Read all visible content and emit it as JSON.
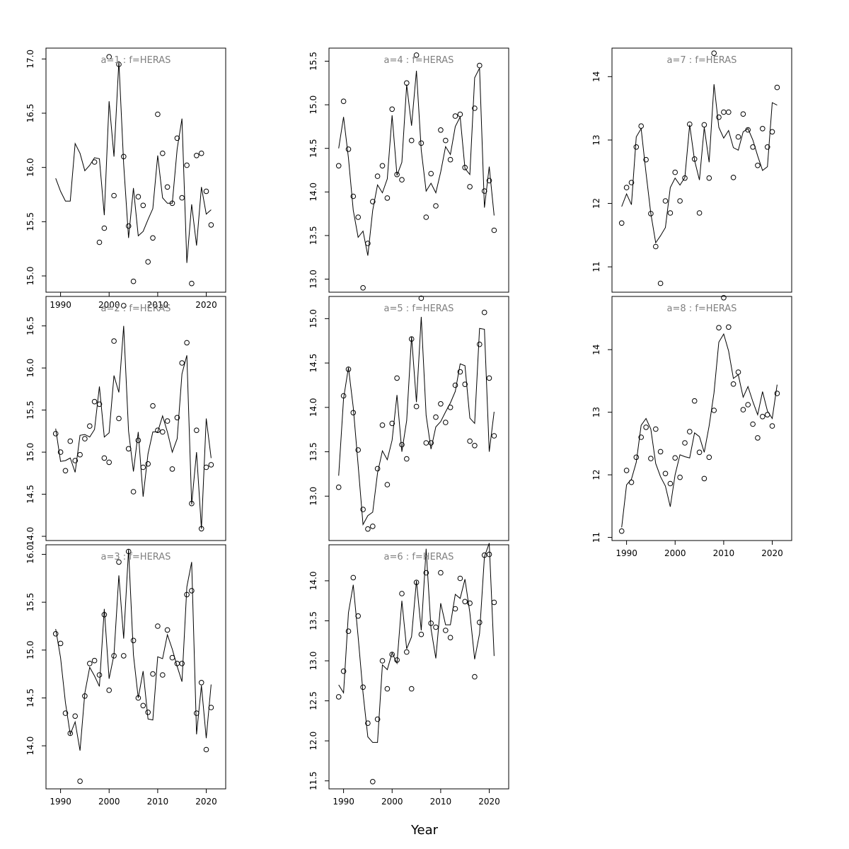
{
  "figure": {
    "xlabel": "Year",
    "line_color": "#000000",
    "title_color": "#808080",
    "point_symbol": "open-circle"
  },
  "chart_data": [
    {
      "type": "scatter",
      "title": "a=1  :  f=HERAS",
      "xlim": [
        1987,
        2024
      ],
      "ylim": [
        14.85,
        17.1
      ],
      "yticks": [
        15.0,
        15.5,
        16.0,
        16.5,
        17.0
      ],
      "xticks": [
        1990,
        2000,
        2010,
        2020
      ],
      "show_xticks": true,
      "x": [
        1989,
        1990,
        1991,
        1992,
        1993,
        1994,
        1995,
        1996,
        1997,
        1998,
        1999,
        2000,
        2001,
        2002,
        2003,
        2004,
        2005,
        2006,
        2007,
        2008,
        2009,
        2010,
        2011,
        2012,
        2013,
        2014,
        2015,
        2016,
        2017,
        2018,
        2019,
        2020,
        2021
      ],
      "observed": [
        null,
        null,
        null,
        null,
        null,
        null,
        null,
        null,
        16.05,
        15.31,
        15.44,
        17.02,
        15.74,
        16.95,
        16.1,
        15.46,
        14.95,
        15.73,
        15.65,
        15.13,
        15.35,
        16.49,
        16.13,
        15.82,
        15.67,
        16.27,
        15.72,
        16.02,
        14.93,
        16.11,
        16.13,
        15.78,
        15.47
      ],
      "fitted": [
        15.9,
        15.78,
        15.69,
        15.69,
        16.22,
        16.13,
        15.97,
        16.02,
        16.09,
        16.08,
        15.56,
        16.61,
        16.1,
        16.98,
        16.03,
        15.35,
        15.81,
        15.37,
        15.41,
        15.52,
        15.62,
        16.11,
        15.72,
        15.67,
        15.67,
        16.17,
        16.45,
        15.12,
        15.66,
        15.28,
        15.82,
        15.57,
        15.61
      ]
    },
    {
      "type": "scatter",
      "title": "a=2  :  f=HERAS",
      "xlim": [
        1987,
        2024
      ],
      "ylim": [
        13.95,
        16.85
      ],
      "yticks": [
        14.0,
        14.5,
        15.0,
        15.5,
        16.0,
        16.5
      ],
      "xticks": [
        1990,
        2000,
        2010,
        2020
      ],
      "show_xticks": false,
      "x": [
        1989,
        1990,
        1991,
        1992,
        1993,
        1994,
        1995,
        1996,
        1997,
        1998,
        1999,
        2000,
        2001,
        2002,
        2003,
        2004,
        2005,
        2006,
        2007,
        2008,
        2009,
        2010,
        2011,
        2012,
        2013,
        2014,
        2015,
        2016,
        2017,
        2018,
        2019,
        2020,
        2021
      ],
      "observed": [
        15.22,
        15.0,
        14.78,
        15.13,
        14.9,
        14.97,
        15.16,
        15.31,
        15.6,
        15.57,
        14.93,
        14.88,
        16.32,
        15.4,
        16.74,
        15.04,
        14.53,
        15.14,
        14.82,
        14.86,
        15.55,
        15.26,
        15.24,
        15.37,
        14.8,
        15.41,
        16.06,
        16.3,
        14.39,
        15.26,
        14.09,
        14.82,
        14.85
      ],
      "fitted": [
        15.28,
        14.89,
        14.9,
        14.93,
        14.76,
        15.2,
        15.21,
        15.18,
        15.27,
        15.78,
        15.18,
        15.23,
        15.91,
        15.71,
        16.5,
        15.25,
        14.77,
        15.24,
        14.47,
        14.98,
        15.24,
        15.24,
        15.43,
        15.24,
        15.0,
        15.16,
        15.93,
        16.15,
        14.38,
        15.0,
        14.09,
        15.4,
        14.93
      ]
    },
    {
      "type": "scatter",
      "title": "a=3  :  f=HERAS",
      "xlim": [
        1987,
        2024
      ],
      "ylim": [
        13.55,
        16.1
      ],
      "yticks": [
        14.0,
        14.5,
        15.0,
        15.5,
        16.0
      ],
      "xticks": [
        1990,
        2000,
        2010,
        2020
      ],
      "show_xticks": true,
      "x": [
        1989,
        1990,
        1991,
        1992,
        1993,
        1994,
        1995,
        1996,
        1997,
        1998,
        1999,
        2000,
        2001,
        2002,
        2003,
        2004,
        2005,
        2006,
        2007,
        2008,
        2009,
        2010,
        2011,
        2012,
        2013,
        2014,
        2015,
        2016,
        2017,
        2018,
        2019,
        2020,
        2021
      ],
      "observed": [
        15.17,
        15.07,
        14.34,
        14.13,
        14.31,
        13.63,
        14.52,
        14.86,
        14.89,
        14.74,
        15.37,
        14.58,
        14.94,
        15.92,
        14.94,
        16.03,
        15.1,
        14.5,
        14.42,
        14.35,
        14.75,
        15.25,
        14.74,
        15.21,
        14.92,
        14.86,
        14.86,
        15.58,
        15.62,
        14.34,
        14.66,
        13.96,
        14.4
      ],
      "fitted": [
        15.22,
        14.92,
        14.45,
        14.12,
        14.25,
        13.95,
        14.55,
        14.82,
        14.73,
        14.62,
        15.43,
        14.7,
        14.95,
        15.78,
        15.12,
        16.05,
        14.95,
        14.5,
        14.78,
        14.28,
        14.27,
        14.93,
        14.91,
        15.16,
        15.01,
        14.83,
        14.67,
        15.66,
        15.92,
        14.12,
        14.63,
        14.08,
        14.64
      ]
    },
    {
      "type": "scatter",
      "title": "a=4  :  f=HERAS",
      "xlim": [
        1987,
        2024
      ],
      "ylim": [
        12.85,
        15.65
      ],
      "yticks": [
        13.0,
        13.5,
        14.0,
        14.5,
        15.0,
        15.5
      ],
      "xticks": [
        1990,
        2000,
        2010,
        2020
      ],
      "show_xticks": false,
      "x": [
        1989,
        1990,
        1991,
        1992,
        1993,
        1994,
        1995,
        1996,
        1997,
        1998,
        1999,
        2000,
        2001,
        2002,
        2003,
        2004,
        2005,
        2006,
        2007,
        2008,
        2009,
        2010,
        2011,
        2012,
        2013,
        2014,
        2015,
        2016,
        2017,
        2018,
        2019,
        2020,
        2021
      ],
      "observed": [
        14.3,
        15.04,
        14.49,
        13.95,
        13.71,
        12.9,
        13.41,
        13.89,
        14.18,
        14.3,
        13.93,
        14.95,
        14.2,
        14.14,
        15.25,
        14.59,
        15.57,
        14.56,
        13.71,
        14.21,
        13.84,
        14.71,
        14.59,
        14.37,
        14.87,
        14.89,
        14.28,
        14.06,
        14.96,
        15.45,
        14.01,
        14.13,
        13.56
      ],
      "fitted": [
        14.5,
        14.86,
        14.39,
        13.79,
        13.48,
        13.55,
        13.27,
        13.79,
        14.08,
        13.99,
        14.15,
        14.88,
        14.19,
        14.34,
        15.23,
        14.76,
        15.39,
        14.48,
        14.01,
        14.1,
        13.99,
        14.23,
        14.52,
        14.43,
        14.75,
        14.86,
        14.27,
        14.2,
        15.31,
        15.42,
        13.82,
        14.29,
        13.73
      ]
    },
    {
      "type": "scatter",
      "title": "a=5  :  f=HERAS",
      "xlim": [
        1987,
        2024
      ],
      "ylim": [
        12.5,
        15.25
      ],
      "yticks": [
        13.0,
        13.5,
        14.0,
        14.5,
        15.0
      ],
      "xticks": [
        1990,
        2000,
        2010,
        2020
      ],
      "show_xticks": false,
      "x": [
        1989,
        1990,
        1991,
        1992,
        1993,
        1994,
        1995,
        1996,
        1997,
        1998,
        1999,
        2000,
        2001,
        2002,
        2003,
        2004,
        2005,
        2006,
        2007,
        2008,
        2009,
        2010,
        2011,
        2012,
        2013,
        2014,
        2015,
        2016,
        2017,
        2018,
        2019,
        2020,
        2021
      ],
      "observed": [
        13.1,
        14.13,
        14.43,
        13.94,
        13.52,
        12.85,
        12.63,
        12.66,
        13.31,
        13.8,
        13.13,
        13.82,
        14.33,
        13.58,
        13.42,
        14.77,
        14.01,
        15.23,
        13.6,
        13.6,
        13.89,
        14.04,
        13.83,
        14.0,
        14.25,
        14.4,
        14.26,
        13.62,
        13.57,
        14.71,
        15.07,
        14.33,
        13.68
      ],
      "fitted": [
        13.23,
        14.1,
        14.45,
        14.0,
        13.35,
        12.68,
        12.78,
        12.82,
        13.26,
        13.51,
        13.41,
        13.63,
        14.14,
        13.5,
        13.85,
        14.8,
        14.06,
        15.02,
        13.91,
        13.53,
        13.78,
        13.84,
        13.95,
        14.05,
        14.18,
        14.49,
        14.47,
        13.88,
        13.82,
        14.89,
        14.88,
        13.5,
        13.95
      ]
    },
    {
      "type": "scatter",
      "title": "a=6  :  f=HERAS",
      "xlim": [
        1987,
        2024
      ],
      "ylim": [
        11.4,
        14.45
      ],
      "yticks": [
        11.5,
        12.0,
        12.5,
        13.0,
        13.5,
        14.0
      ],
      "xticks": [
        1990,
        2000,
        2010,
        2020
      ],
      "show_xticks": true,
      "x": [
        1989,
        1990,
        1991,
        1992,
        1993,
        1994,
        1995,
        1996,
        1997,
        1998,
        1999,
        2000,
        2001,
        2002,
        2003,
        2004,
        2005,
        2006,
        2007,
        2008,
        2009,
        2010,
        2011,
        2012,
        2013,
        2014,
        2015,
        2016,
        2017,
        2018,
        2019,
        2020,
        2021
      ],
      "observed": [
        12.55,
        12.87,
        13.37,
        14.04,
        13.56,
        12.67,
        12.22,
        11.49,
        12.27,
        13.0,
        12.65,
        13.08,
        13.01,
        13.84,
        13.11,
        12.65,
        13.98,
        13.33,
        14.1,
        13.47,
        13.42,
        14.1,
        13.38,
        13.29,
        13.65,
        14.03,
        13.74,
        13.72,
        12.8,
        13.48,
        14.32,
        14.33,
        13.73
      ],
      "fitted": [
        12.7,
        12.6,
        13.6,
        13.95,
        13.3,
        12.6,
        12.05,
        11.98,
        11.98,
        12.95,
        12.89,
        13.1,
        12.97,
        13.75,
        13.15,
        13.3,
        14.0,
        13.38,
        14.4,
        13.4,
        13.03,
        13.72,
        13.45,
        13.45,
        13.83,
        13.78,
        14.02,
        13.6,
        13.02,
        13.34,
        14.3,
        14.47,
        13.06
      ]
    },
    {
      "type": "scatter",
      "title": "a=7  :  f=HERAS",
      "xlim": [
        1987,
        2024
      ],
      "ylim": [
        10.6,
        14.45
      ],
      "yticks": [
        11,
        12,
        13,
        14
      ],
      "xticks": [
        1990,
        2000,
        2010,
        2020
      ],
      "show_xticks": false,
      "x": [
        1989,
        1990,
        1991,
        1992,
        1993,
        1994,
        1995,
        1996,
        1997,
        1998,
        1999,
        2000,
        2001,
        2002,
        2003,
        2004,
        2005,
        2006,
        2007,
        2008,
        2009,
        2010,
        2011,
        2012,
        2013,
        2014,
        2015,
        2016,
        2017,
        2018,
        2019,
        2020,
        2021
      ],
      "observed": [
        11.69,
        12.25,
        12.33,
        12.89,
        13.22,
        12.69,
        11.84,
        11.32,
        10.74,
        12.04,
        11.85,
        12.49,
        12.04,
        12.4,
        13.25,
        12.7,
        11.85,
        13.24,
        12.4,
        14.37,
        13.36,
        13.44,
        13.44,
        12.41,
        13.05,
        13.41,
        13.16,
        12.89,
        12.6,
        13.18,
        12.89,
        13.13,
        13.83
      ],
      "fitted": [
        11.95,
        12.15,
        11.98,
        13.05,
        13.18,
        12.48,
        11.84,
        11.38,
        11.49,
        11.62,
        12.25,
        12.4,
        12.29,
        12.41,
        13.24,
        12.68,
        12.37,
        13.2,
        12.65,
        13.88,
        13.2,
        13.03,
        13.15,
        12.88,
        12.84,
        13.13,
        13.18,
        13.0,
        12.75,
        12.52,
        12.58,
        13.59,
        13.55
      ]
    },
    {
      "type": "scatter",
      "title": "a=8  :  f=HERAS",
      "xlim": [
        1987,
        2024
      ],
      "ylim": [
        10.95,
        14.85
      ],
      "yticks": [
        11,
        12,
        13,
        14
      ],
      "xticks": [
        1990,
        2000,
        2010,
        2020
      ],
      "show_xticks": true,
      "x": [
        1989,
        1990,
        1991,
        1992,
        1993,
        1994,
        1995,
        1996,
        1997,
        1998,
        1999,
        2000,
        2001,
        2002,
        2003,
        2004,
        2005,
        2006,
        2007,
        2008,
        2009,
        2010,
        2011,
        2012,
        2013,
        2014,
        2015,
        2016,
        2017,
        2018,
        2019,
        2020,
        2021
      ],
      "observed": [
        11.1,
        12.07,
        11.88,
        12.28,
        12.6,
        12.76,
        12.26,
        12.73,
        12.37,
        12.02,
        11.86,
        12.27,
        11.96,
        12.51,
        12.69,
        13.18,
        12.36,
        11.94,
        12.28,
        13.03,
        14.35,
        14.83,
        14.36,
        13.45,
        13.64,
        13.04,
        13.12,
        12.81,
        12.59,
        12.93,
        12.96,
        12.78,
        13.3
      ],
      "fitted": [
        11.16,
        11.84,
        11.93,
        12.2,
        12.79,
        12.9,
        12.73,
        12.18,
        11.97,
        11.82,
        11.49,
        12.0,
        12.32,
        12.29,
        12.27,
        12.67,
        12.61,
        12.36,
        12.78,
        13.31,
        14.12,
        14.25,
        13.98,
        13.54,
        13.6,
        13.24,
        13.41,
        13.17,
        12.96,
        13.33,
        13.02,
        12.9,
        13.44
      ]
    }
  ]
}
